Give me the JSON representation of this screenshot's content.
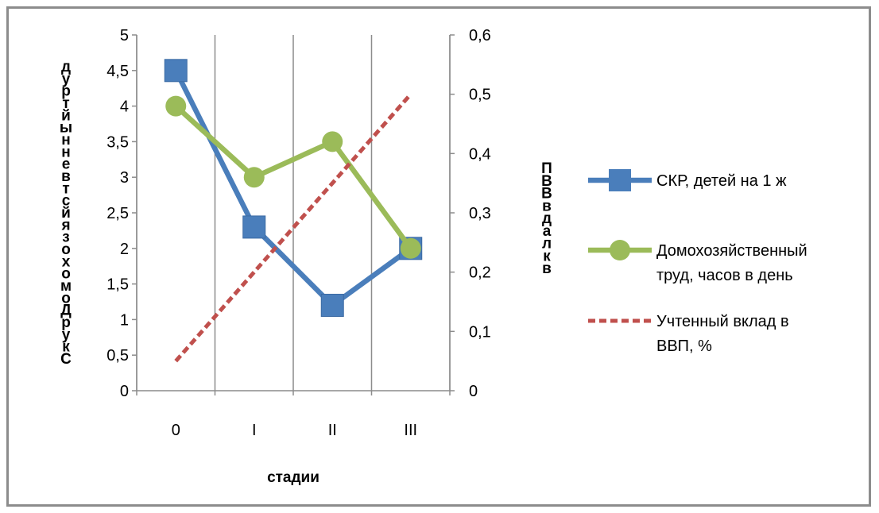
{
  "chart_data": {
    "type": "line",
    "title": "",
    "categories": [
      "0",
      "I",
      "II",
      "III"
    ],
    "xlabel": "стадии",
    "ylabel_left_letters": [
      "д",
      "у",
      "р",
      "т",
      "й",
      "ы",
      "н",
      "н",
      "е",
      "в",
      "т",
      "с",
      "й",
      "я",
      "з",
      "о",
      "х",
      "о",
      "м",
      "о",
      "Д",
      "р",
      "у",
      "к",
      "С"
    ],
    "ylabel_right_letters": [
      "П",
      "В",
      "В",
      "в",
      "д",
      "а",
      "л",
      "к",
      "в"
    ],
    "y_left": {
      "min": 0,
      "max": 5,
      "step": 0.5,
      "tick_labels": [
        "0",
        "0,5",
        "1",
        "1,5",
        "2",
        "2,5",
        "3",
        "3,5",
        "4",
        "4,5",
        "5"
      ]
    },
    "y_right": {
      "min": 0,
      "max": 0.6,
      "step": 0.1,
      "tick_labels": [
        "0",
        "0,1",
        "0,2",
        "0,3",
        "0,4",
        "0,5",
        "0,6"
      ]
    },
    "grid": "vertical",
    "legend_position": "right",
    "series": [
      {
        "name": "СКР, детей на 1 ж",
        "axis": "left",
        "values": [
          4.5,
          2.3,
          1.2,
          2.0
        ],
        "color": "#4a7ebb",
        "marker": "square",
        "line_style": "solid"
      },
      {
        "name": "Домохозяйственный труд, часов в день",
        "axis": "left",
        "values": [
          4.0,
          3.0,
          3.5,
          2.0
        ],
        "color": "#9bbb59",
        "marker": "circle",
        "line_style": "solid"
      },
      {
        "name": "Учтенный вклад в ВВП, %",
        "axis": "right",
        "values": [
          0.05,
          0.2,
          0.35,
          0.5
        ],
        "color": "#c0504d",
        "marker": "none",
        "line_style": "dashed"
      }
    ],
    "legend_lines": [
      [
        "СКР, детей на 1 ж"
      ],
      [
        "Домохозяйственный",
        "труд, часов в день"
      ],
      [
        "Учтенный вклад в",
        "ВВП, %"
      ]
    ]
  }
}
